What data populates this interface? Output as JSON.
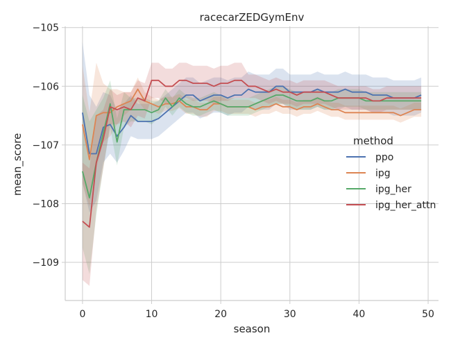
{
  "chart_data": {
    "type": "line",
    "title": "racecarZEDGymEnv",
    "xlabel": "season",
    "ylabel": "mean_score",
    "xlim": [
      -2.5,
      51.5
    ],
    "ylim": [
      -109.65,
      -104.98
    ],
    "xticks": [
      0,
      10,
      20,
      30,
      40,
      50
    ],
    "yticks": [
      -109,
      -108,
      -107,
      -106,
      -105
    ],
    "grid": true,
    "legend": {
      "title": "method",
      "placement": "right"
    },
    "series": [
      {
        "name": "ppo",
        "color": "#4c72b0",
        "y": [
          -106.45,
          -107.15,
          -107.15,
          -106.7,
          -106.65,
          -106.85,
          -106.7,
          -106.5,
          -106.6,
          -106.6,
          -106.6,
          -106.55,
          -106.45,
          -106.35,
          -106.25,
          -106.15,
          -106.15,
          -106.25,
          -106.2,
          -106.15,
          -106.15,
          -106.2,
          -106.15,
          -106.15,
          -106.05,
          -106.1,
          -106.1,
          -106.1,
          -106.0,
          -106.0,
          -106.1,
          -106.1,
          -106.1,
          -106.1,
          -106.05,
          -106.1,
          -106.1,
          -106.1,
          -106.05,
          -106.1,
          -106.1,
          -106.1,
          -106.15,
          -106.15,
          -106.15,
          -106.2,
          -106.2,
          -106.2,
          -106.2,
          -106.15
        ],
        "ci": [
          1.2,
          1.0,
          0.8,
          0.6,
          0.5,
          0.45,
          0.4,
          0.35,
          0.3,
          0.3,
          0.3,
          0.3,
          0.3,
          0.3,
          0.3,
          0.3,
          0.3,
          0.3,
          0.3,
          0.3,
          0.3,
          0.3,
          0.3,
          0.3,
          0.3,
          0.3,
          0.3,
          0.3,
          0.3,
          0.3,
          0.3,
          0.3,
          0.3,
          0.3,
          0.3,
          0.3,
          0.3,
          0.3,
          0.3,
          0.3,
          0.3,
          0.3,
          0.3,
          0.3,
          0.3,
          0.3,
          0.3,
          0.3,
          0.3,
          0.3
        ]
      },
      {
        "name": "ipg",
        "color": "#dd8452",
        "y": [
          -106.65,
          -107.25,
          -106.5,
          -106.45,
          -106.45,
          -106.35,
          -106.3,
          -106.25,
          -106.05,
          -106.25,
          -106.3,
          -106.35,
          -106.3,
          -106.3,
          -106.25,
          -106.35,
          -106.35,
          -106.4,
          -106.4,
          -106.3,
          -106.3,
          -106.35,
          -106.35,
          -106.35,
          -106.35,
          -106.4,
          -106.35,
          -106.35,
          -106.3,
          -106.35,
          -106.35,
          -106.4,
          -106.35,
          -106.35,
          -106.3,
          -106.35,
          -106.4,
          -106.4,
          -106.45,
          -106.45,
          -106.45,
          -106.45,
          -106.45,
          -106.45,
          -106.45,
          -106.45,
          -106.5,
          -106.45,
          -106.4,
          -106.4
        ],
        "ci": [
          1.0,
          0.8,
          0.9,
          0.5,
          0.4,
          0.3,
          0.2,
          0.15,
          0.2,
          0.15,
          0.12,
          0.12,
          0.12,
          0.12,
          0.12,
          0.12,
          0.12,
          0.12,
          0.12,
          0.12,
          0.12,
          0.12,
          0.12,
          0.12,
          0.12,
          0.12,
          0.12,
          0.12,
          0.12,
          0.12,
          0.12,
          0.12,
          0.12,
          0.12,
          0.12,
          0.12,
          0.12,
          0.12,
          0.12,
          0.12,
          0.12,
          0.12,
          0.12,
          0.12,
          0.12,
          0.12,
          0.12,
          0.12,
          0.12,
          0.12
        ]
      },
      {
        "name": "ipg_her",
        "color": "#55a868",
        "y": [
          -107.45,
          -107.9,
          -107.3,
          -106.8,
          -106.3,
          -106.95,
          -106.4,
          -106.4,
          -106.4,
          -106.4,
          -106.45,
          -106.4,
          -106.2,
          -106.35,
          -106.2,
          -106.3,
          -106.35,
          -106.35,
          -106.3,
          -106.25,
          -106.3,
          -106.35,
          -106.35,
          -106.35,
          -106.35,
          -106.3,
          -106.25,
          -106.2,
          -106.15,
          -106.15,
          -106.2,
          -106.25,
          -106.25,
          -106.25,
          -106.2,
          -106.25,
          -106.25,
          -106.2,
          -106.2,
          -106.2,
          -106.2,
          -106.25,
          -106.25,
          -106.25,
          -106.25,
          -106.25,
          -106.25,
          -106.25,
          -106.25,
          -106.25
        ],
        "ci": [
          1.3,
          1.3,
          0.9,
          0.6,
          0.4,
          0.4,
          0.3,
          0.2,
          0.2,
          0.2,
          0.2,
          0.15,
          0.15,
          0.15,
          0.15,
          0.15,
          0.15,
          0.15,
          0.15,
          0.15,
          0.15,
          0.15,
          0.15,
          0.15,
          0.15,
          0.15,
          0.15,
          0.15,
          0.15,
          0.15,
          0.15,
          0.15,
          0.15,
          0.15,
          0.15,
          0.15,
          0.15,
          0.15,
          0.15,
          0.15,
          0.15,
          0.15,
          0.15,
          0.15,
          0.15,
          0.15,
          0.15,
          0.15,
          0.15,
          0.15
        ]
      },
      {
        "name": "ipg_her_attn",
        "color": "#c44e52",
        "y": [
          -108.3,
          -108.4,
          -107.3,
          -106.9,
          -106.35,
          -106.4,
          -106.35,
          -106.4,
          -106.2,
          -106.25,
          -105.9,
          -105.9,
          -106.0,
          -106.0,
          -105.9,
          -105.9,
          -105.95,
          -105.95,
          -105.95,
          -106.0,
          -105.95,
          -105.95,
          -105.9,
          -105.9,
          -106.0,
          -106.0,
          -106.05,
          -106.1,
          -106.05,
          -106.1,
          -106.1,
          -106.15,
          -106.1,
          -106.1,
          -106.1,
          -106.1,
          -106.15,
          -106.2,
          -106.2,
          -106.2,
          -106.2,
          -106.2,
          -106.25,
          -106.25,
          -106.2,
          -106.2,
          -106.2,
          -106.2,
          -106.2,
          -106.2
        ],
        "ci": [
          1.0,
          1.0,
          0.8,
          0.5,
          0.3,
          0.25,
          0.25,
          0.3,
          0.3,
          0.3,
          0.3,
          0.3,
          0.3,
          0.3,
          0.3,
          0.3,
          0.3,
          0.3,
          0.3,
          0.3,
          0.3,
          0.3,
          0.3,
          0.3,
          0.2,
          0.2,
          0.2,
          0.2,
          0.2,
          0.2,
          0.2,
          0.2,
          0.2,
          0.2,
          0.2,
          0.2,
          0.2,
          0.2,
          0.2,
          0.2,
          0.2,
          0.2,
          0.2,
          0.2,
          0.2,
          0.2,
          0.2,
          0.2,
          0.2,
          0.2
        ]
      }
    ]
  }
}
